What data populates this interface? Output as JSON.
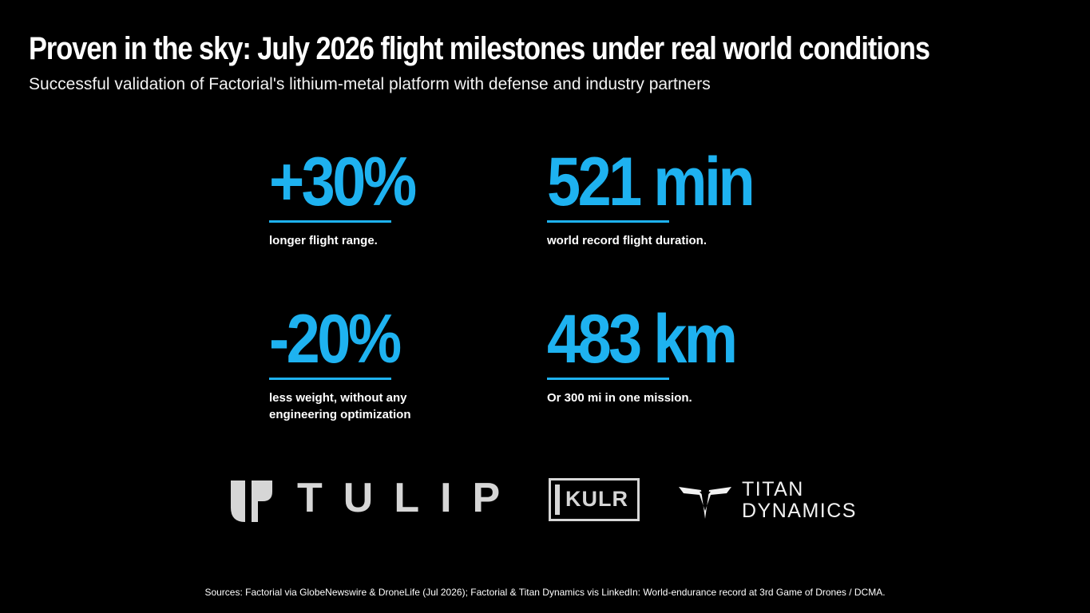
{
  "header": {
    "title": "Proven in the sky: July 2026 flight milestones under real world conditions",
    "subtitle": "Successful validation of Factorial's lithium-metal platform with defense and industry partners"
  },
  "stats": [
    {
      "value": "+30%",
      "caption": "longer flight range."
    },
    {
      "value": "521 min",
      "caption": "world record  flight duration."
    },
    {
      "value": "-20%",
      "caption": "less weight, without any engineering optimization"
    },
    {
      "value": "483 km",
      "caption": "Or 300 mi in one mission."
    }
  ],
  "logos": {
    "tulip": {
      "name": "TULIP"
    },
    "kulr": {
      "name": "KULR"
    },
    "titan": {
      "line1": "TITAN",
      "line2": "DYNAMICS"
    }
  },
  "footer": {
    "sources": "Sources: Factorial via GlobeNewswire & DroneLife (Jul 2026); Factorial & Titan Dynamics vis LinkedIn: World-endurance record at 3rd Game of Drones / DCMA."
  },
  "colors": {
    "background": "#000000",
    "accent": "#1eb2f0",
    "logo_gray": "#d6d6d6"
  }
}
